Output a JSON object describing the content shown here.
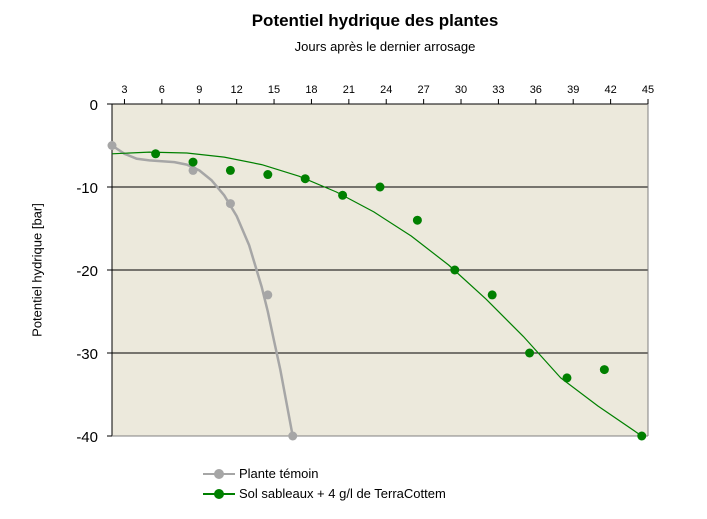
{
  "chart_data": {
    "type": "scatter",
    "title": "Potentiel hydrique des plantes",
    "subtitle": "Jours après le dernier arrosage",
    "ylabel": "Potentiel hydrique [bar]",
    "xlabel": "",
    "xlim": [
      2,
      45
    ],
    "ylim": [
      -40,
      0
    ],
    "x_ticks": [
      3,
      6,
      9,
      12,
      15,
      18,
      21,
      24,
      27,
      30,
      33,
      36,
      39,
      42,
      45
    ],
    "y_ticks": [
      0,
      -10,
      -20,
      -30,
      -40
    ],
    "x_axis_position": "top",
    "grid": "horizontal",
    "plot_background": "#ece9dc",
    "legend_position": "bottom",
    "series": [
      {
        "name": "Plante témoin",
        "color": "#a6a6a6",
        "points": [
          [
            2,
            -5
          ],
          [
            8.5,
            -8
          ],
          [
            11.5,
            -12
          ],
          [
            14.5,
            -23
          ],
          [
            16.5,
            -40
          ]
        ],
        "curve": [
          [
            2,
            -5
          ],
          [
            3,
            -6
          ],
          [
            4,
            -6.6
          ],
          [
            5,
            -6.8
          ],
          [
            6,
            -6.9
          ],
          [
            7,
            -7
          ],
          [
            8,
            -7.3
          ],
          [
            9,
            -8
          ],
          [
            10,
            -9.2
          ],
          [
            11,
            -11
          ],
          [
            12,
            -13.5
          ],
          [
            13,
            -17
          ],
          [
            14,
            -22
          ],
          [
            14.5,
            -25
          ],
          [
            15,
            -28.5
          ],
          [
            15.5,
            -32
          ],
          [
            16,
            -36
          ],
          [
            16.5,
            -40
          ]
        ]
      },
      {
        "name": "Sol sableaux + 4 g/l de TerraCottem",
        "color": "#008000",
        "points": [
          [
            5.5,
            -6
          ],
          [
            8.5,
            -7
          ],
          [
            11.5,
            -8
          ],
          [
            14.5,
            -8.5
          ],
          [
            17.5,
            -9
          ],
          [
            20.5,
            -11
          ],
          [
            23.5,
            -10
          ],
          [
            26.5,
            -14
          ],
          [
            29.5,
            -20
          ],
          [
            32.5,
            -23
          ],
          [
            35.5,
            -30
          ],
          [
            38.5,
            -33
          ],
          [
            41.5,
            -32
          ],
          [
            44.5,
            -40
          ]
        ],
        "curve": [
          [
            2,
            -6
          ],
          [
            5,
            -5.8
          ],
          [
            8,
            -5.9
          ],
          [
            11,
            -6.4
          ],
          [
            14,
            -7.3
          ],
          [
            17,
            -8.7
          ],
          [
            20,
            -10.6
          ],
          [
            23,
            -13
          ],
          [
            26,
            -15.9
          ],
          [
            29,
            -19.4
          ],
          [
            32,
            -23.5
          ],
          [
            35,
            -28
          ],
          [
            38,
            -33
          ],
          [
            41,
            -36.4
          ],
          [
            44.5,
            -40
          ]
        ]
      }
    ]
  }
}
